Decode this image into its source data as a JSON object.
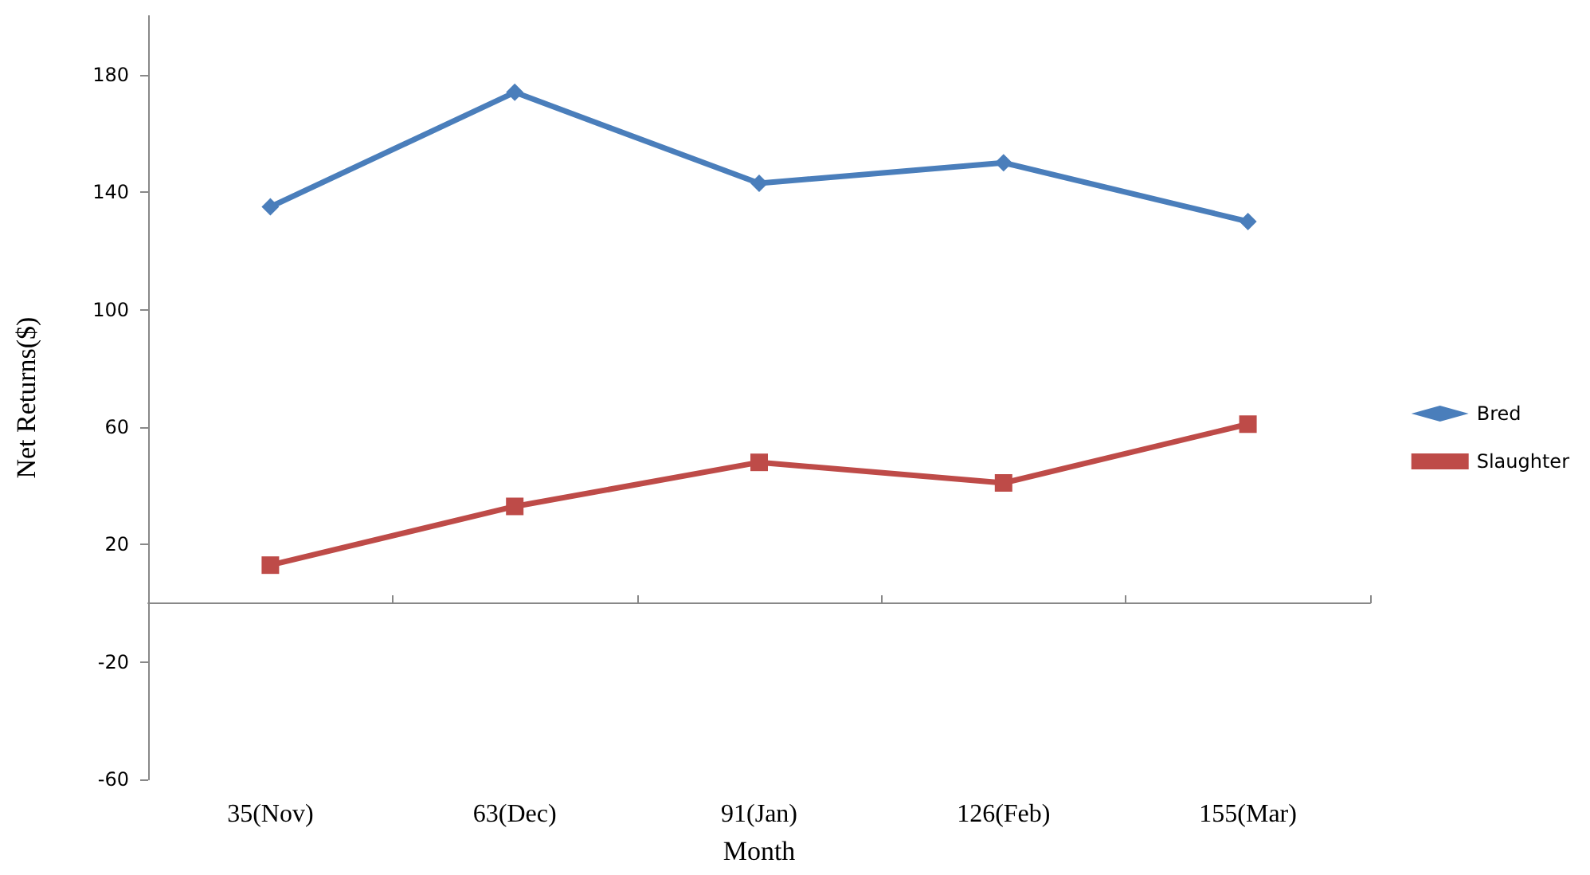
{
  "chart_data": {
    "type": "line",
    "xlabel": "Month",
    "ylabel": "Net Returns($)",
    "categories": [
      "35(Nov)",
      "63(Dec)",
      "91(Jan)",
      "126(Feb)",
      "155(Mar)"
    ],
    "series": [
      {
        "name": "Bred",
        "color": "#4a7ebb",
        "marker": "diamond",
        "values": [
          135,
          174,
          143,
          150,
          130
        ]
      },
      {
        "name": "Slaughter",
        "color": "#be4b48",
        "marker": "square",
        "values": [
          13,
          33,
          48,
          41,
          61
        ]
      }
    ],
    "ylim": [
      -60,
      200
    ],
    "yticks": [
      -60,
      -20,
      20,
      60,
      100,
      140,
      180
    ],
    "grid": false,
    "legend": "right",
    "line_style": "solid"
  }
}
